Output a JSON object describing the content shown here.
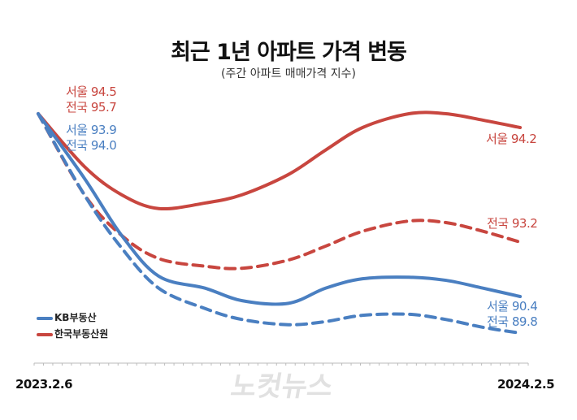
{
  "title": "최근 1년 아파트 가격 변동",
  "subtitle": "(주간 아파트 매매가격 지수)",
  "watermark": "노컷뉴스",
  "chart_data": {
    "type": "line",
    "title": "최근 1년 아파트 가격 변동",
    "subtitle": "(주간 아파트 매매가격 지수)",
    "x_tick_labels": [
      "2023.2.6",
      "2024.2.5"
    ],
    "xlim": [
      "2023-02-06",
      "2024-02-05"
    ],
    "grid": false,
    "legend_placement": "bottom-left",
    "legend": [
      {
        "label": "KB부동산",
        "color": "#4a7fc1"
      },
      {
        "label": "한국부동산원",
        "color": "#c8463f"
      }
    ],
    "x": [
      "2023-02-06",
      "2023-03-13",
      "2023-04-10",
      "2023-05-08",
      "2023-06-12",
      "2023-07-10",
      "2023-08-14",
      "2023-09-11",
      "2023-10-09",
      "2023-11-13",
      "2023-12-11",
      "2024-01-08",
      "2024-02-05"
    ],
    "series": [
      {
        "source": "한국부동산원",
        "region": "서울",
        "style": "solid",
        "color": "#c8463f",
        "values": [
          94.5,
          93.35,
          92.74,
          92.44,
          92.56,
          92.74,
          93.18,
          93.71,
          94.2,
          94.5,
          94.5,
          94.36,
          94.2
        ]
      },
      {
        "source": "한국부동산원",
        "region": "전국",
        "style": "dashed",
        "color": "#c8463f",
        "values": [
          95.7,
          94.12,
          93.33,
          92.88,
          92.73,
          92.69,
          92.85,
          93.12,
          93.41,
          93.61,
          93.58,
          93.41,
          93.2
        ]
      },
      {
        "source": "KB부동산",
        "region": "서울",
        "style": "solid",
        "color": "#4a7fc1",
        "values": [
          93.9,
          92.66,
          91.57,
          90.79,
          90.56,
          90.32,
          90.27,
          90.56,
          90.74,
          90.77,
          90.71,
          90.56,
          90.4
        ]
      },
      {
        "source": "KB부동산",
        "region": "전국",
        "style": "dashed",
        "color": "#4a7fc1",
        "values": [
          94.0,
          92.44,
          91.43,
          90.66,
          90.27,
          90.06,
          89.96,
          90.02,
          90.14,
          90.16,
          90.06,
          89.91,
          89.8
        ]
      }
    ],
    "annotations": {
      "red_start": [
        "서울 94.5",
        "전국 95.7"
      ],
      "blue_start": [
        "서울 93.9",
        "전국 94.0"
      ],
      "red_seoul_end": "서울 94.2",
      "red_nation_end": "전국 93.2",
      "blue_end": [
        "서울 90.4",
        "전국 89.8"
      ]
    }
  }
}
